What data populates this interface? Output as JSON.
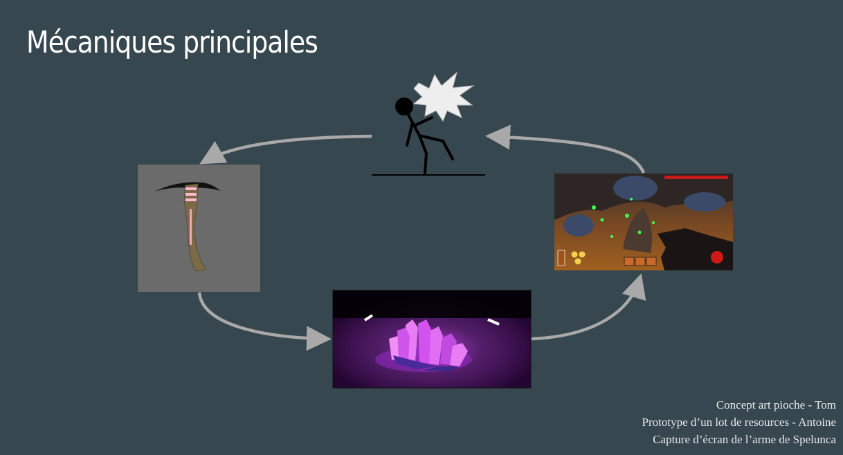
{
  "slide": {
    "title": "Mécaniques principales",
    "credits": [
      "Concept art pioche - Tom",
      "Prototype d’un lot de resources - Antoine",
      "Capture d’écran de l’arme de Spelunca"
    ]
  },
  "colors": {
    "background": "#37474f",
    "arrow": "#a9a9a9",
    "pickaxe_panel": "#6b6b6b",
    "crystal": "#e040fb"
  },
  "icons": {
    "stick_figure": "stick-figure-hit-icon",
    "pickaxe": "pickaxe-concept-art",
    "crystal": "resource-crystal-prototype",
    "game": "spelunca-weapon-screenshot"
  }
}
